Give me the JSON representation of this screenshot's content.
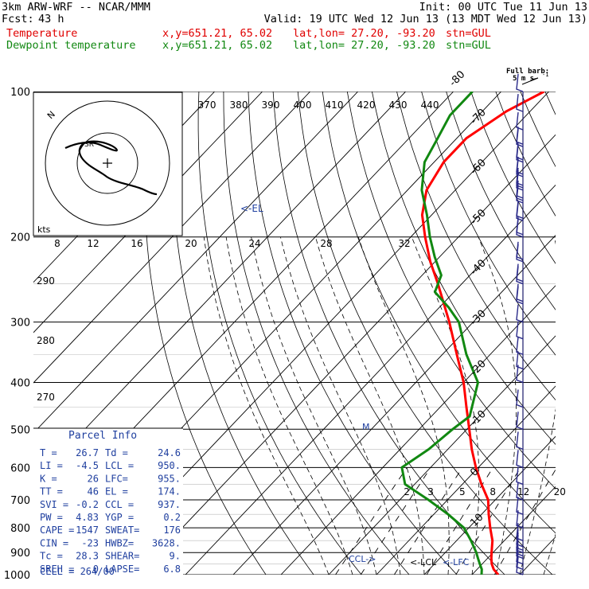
{
  "header": {
    "model": "3km ARW-WRF -- NCAR/MMM",
    "init": "Init: 00 UTC Tue 11 Jun 13",
    "fcst_label": "Fcst:",
    "fcst_value": "43 h",
    "valid": "Valid: 19 UTC Wed 12 Jun 13 (13 MDT Wed 12 Jun 13)",
    "line1_name": "Temperature",
    "line2_name": "Dewpoint temperature",
    "xy": "x,y=651.21, 65.02",
    "latlon": "lat,lon= 27.20, -93.20",
    "stn": "stn=GUL"
  },
  "colors": {
    "temperature": "#ff0000",
    "dewpoint": "#118811",
    "barbs": "#2a2a8a",
    "text_blue": "#1f3f9f"
  },
  "barb_key": {
    "line1": "Full barb:",
    "line2": "5 m s",
    "sup": "-1"
  },
  "chart_data": {
    "type": "line",
    "title": "",
    "y_scale": "log-pressure",
    "ylim": [
      1000,
      100
    ],
    "pressure_ticks": [
      100,
      200,
      300,
      400,
      500,
      600,
      700,
      800,
      900,
      1000
    ],
    "skewed_temp_labels": [
      -80,
      -70,
      -60,
      -50,
      -40,
      -30,
      -20,
      -10,
      0,
      10,
      20,
      30,
      40
    ],
    "theta_labels": [
      370,
      380,
      390,
      400,
      410,
      420,
      430,
      440
    ],
    "theta_row_labels": [
      290,
      280,
      270
    ],
    "mixing_ratio_labels": [
      "2",
      "3",
      "5",
      "8",
      "12",
      "20"
    ],
    "grid": true,
    "series": [
      {
        "name": "Temperature",
        "points": [
          [
            1000,
            25.5
          ],
          [
            975,
            23.5
          ],
          [
            950,
            22
          ],
          [
            925,
            20.8
          ],
          [
            900,
            19.7
          ],
          [
            850,
            17.5
          ],
          [
            800,
            14.5
          ],
          [
            750,
            11.5
          ],
          [
            700,
            8.5
          ],
          [
            650,
            4
          ],
          [
            600,
            -0.5
          ],
          [
            550,
            -5
          ],
          [
            500,
            -9.5
          ],
          [
            450,
            -14.5
          ],
          [
            400,
            -20
          ],
          [
            350,
            -27
          ],
          [
            300,
            -35
          ],
          [
            250,
            -45
          ],
          [
            225,
            -51
          ],
          [
            200,
            -57
          ],
          [
            180,
            -62
          ],
          [
            160,
            -66
          ],
          [
            140,
            -68
          ],
          [
            125,
            -68
          ],
          [
            110,
            -65
          ],
          [
            100,
            -61
          ]
        ]
      },
      {
        "name": "Dewpoint temperature",
        "points": [
          [
            1000,
            22
          ],
          [
            975,
            21
          ],
          [
            950,
            19.5
          ],
          [
            925,
            18
          ],
          [
            900,
            16.5
          ],
          [
            850,
            13
          ],
          [
            800,
            9
          ],
          [
            750,
            3
          ],
          [
            700,
            -4
          ],
          [
            650,
            -12
          ],
          [
            600,
            -16
          ],
          [
            550,
            -14
          ],
          [
            500,
            -13
          ],
          [
            470,
            -12
          ],
          [
            400,
            -17
          ],
          [
            350,
            -25
          ],
          [
            300,
            -33
          ],
          [
            280,
            -38
          ],
          [
            260,
            -44
          ],
          [
            240,
            -46
          ],
          [
            220,
            -51
          ],
          [
            200,
            -56
          ],
          [
            180,
            -61
          ],
          [
            160,
            -67
          ],
          [
            140,
            -72
          ],
          [
            125,
            -74
          ],
          [
            112,
            -76
          ],
          [
            100,
            -76
          ]
        ]
      }
    ],
    "wind_barbs_kts": [
      [
        1000,
        5
      ],
      [
        975,
        10
      ],
      [
        950,
        10
      ],
      [
        925,
        15
      ],
      [
        900,
        15
      ],
      [
        875,
        12
      ],
      [
        850,
        10
      ],
      [
        800,
        5
      ],
      [
        750,
        5
      ],
      [
        700,
        5
      ],
      [
        650,
        5
      ],
      [
        600,
        5
      ],
      [
        550,
        5
      ],
      [
        500,
        5
      ],
      [
        450,
        5
      ],
      [
        400,
        5
      ],
      [
        375,
        10
      ],
      [
        350,
        10
      ],
      [
        325,
        10
      ],
      [
        300,
        10
      ],
      [
        275,
        15
      ],
      [
        250,
        20
      ],
      [
        225,
        20
      ],
      [
        200,
        20
      ],
      [
        185,
        20
      ],
      [
        170,
        25
      ],
      [
        160,
        25
      ],
      [
        150,
        20
      ],
      [
        140,
        20
      ],
      [
        130,
        15
      ],
      [
        120,
        10
      ],
      [
        110,
        10
      ],
      [
        100,
        5
      ]
    ],
    "annotations": [
      "<-EL",
      "CCL->",
      "<-LCL",
      "<-LFC"
    ],
    "hodograph": {
      "label_kts": "kts",
      "ring_labels": [
        "8",
        "12",
        "16",
        "20",
        "24",
        "28",
        "32"
      ],
      "north": "N"
    }
  },
  "parcel": {
    "title": "Parcel Info",
    "rows": [
      [
        "T  =",
        "26.7",
        "Td =",
        "24.6"
      ],
      [
        "LI =",
        "-4.5",
        "LCL =",
        "950."
      ],
      [
        "K  =",
        "26",
        "LFC=",
        "955."
      ],
      [
        "TT =",
        "46",
        "EL =",
        "174."
      ],
      [
        "SVI =",
        "-0.2",
        "CCL =",
        "937."
      ],
      [
        "PW =",
        "4.83",
        "YGP =",
        "0.2"
      ],
      [
        "CAPE =",
        "1547",
        "SWEAT=",
        "176"
      ],
      [
        "CIN =",
        "-23",
        "HWBZ=",
        "3628."
      ],
      [
        "Tc =",
        "28.3",
        "SHEAR=",
        "9."
      ],
      [
        "SREH =",
        "0",
        "LAPSE=",
        "6.8"
      ]
    ],
    "cell": "CELL = 264/00"
  }
}
